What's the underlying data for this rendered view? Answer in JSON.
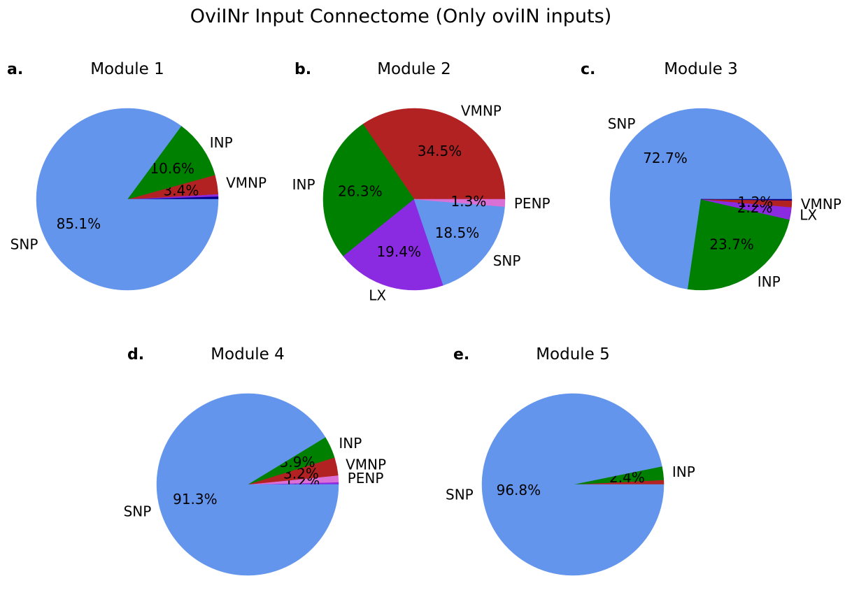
{
  "figure": {
    "title": "OviINr Input Connectome (Only oviIN inputs)"
  },
  "colors": {
    "SNP": "#6495ED",
    "INP": "#008000",
    "VMNP": "#B22222",
    "LX": "#8A2BE2",
    "PENP": "#DA70D6",
    "other": "#00008B"
  },
  "chart_data": [
    {
      "type": "pie",
      "panel": "a.",
      "title": "Module 1",
      "slices": [
        {
          "label": "",
          "value": 0.5,
          "pct": ""
        },
        {
          "label": "",
          "value": 0.4,
          "pct": ""
        },
        {
          "label": "VMNP",
          "value": 3.4,
          "pct": "3.4%"
        },
        {
          "label": "INP",
          "value": 10.6,
          "pct": "10.6%"
        },
        {
          "label": "SNP",
          "value": 85.1,
          "pct": "85.1%"
        }
      ],
      "colors": [
        "#00008B",
        "#8A2BE2",
        "#B22222",
        "#008000",
        "#6495ED"
      ]
    },
    {
      "type": "pie",
      "panel": "b.",
      "title": "Module 2",
      "slices": [
        {
          "label": "VMNP",
          "value": 34.5,
          "pct": "34.5%"
        },
        {
          "label": "INP",
          "value": 26.3,
          "pct": "26.3%"
        },
        {
          "label": "LX",
          "value": 19.4,
          "pct": "19.4%"
        },
        {
          "label": "SNP",
          "value": 18.5,
          "pct": "18.5%"
        },
        {
          "label": "PENP",
          "value": 1.3,
          "pct": "1.3%"
        }
      ],
      "colors": [
        "#B22222",
        "#008000",
        "#8A2BE2",
        "#6495ED",
        "#DA70D6"
      ]
    },
    {
      "type": "pie",
      "panel": "c.",
      "title": "Module 3",
      "slices": [
        {
          "label": "SNP",
          "value": 72.7,
          "pct": "72.7%"
        },
        {
          "label": "INP",
          "value": 23.7,
          "pct": "23.7%"
        },
        {
          "label": "LX",
          "value": 2.2,
          "pct": "2.2%"
        },
        {
          "label": "VMNP",
          "value": 1.2,
          "pct": "1.2%"
        },
        {
          "label": "",
          "value": 0.2,
          "pct": ""
        }
      ],
      "colors": [
        "#6495ED",
        "#008000",
        "#8A2BE2",
        "#B22222",
        "#00008B"
      ]
    },
    {
      "type": "pie",
      "panel": "d.",
      "title": "Module 4",
      "slices": [
        {
          "label": "",
          "value": 0.4,
          "pct": ""
        },
        {
          "label": "PENP",
          "value": 1.2,
          "pct": "1.2%"
        },
        {
          "label": "VMNP",
          "value": 3.2,
          "pct": "3.2%"
        },
        {
          "label": "INP",
          "value": 3.9,
          "pct": "3.9%"
        },
        {
          "label": "SNP",
          "value": 91.3,
          "pct": "91.3%"
        }
      ],
      "colors": [
        "#8A2BE2",
        "#DA70D6",
        "#B22222",
        "#008000",
        "#6495ED"
      ]
    },
    {
      "type": "pie",
      "panel": "e.",
      "title": "Module 5",
      "slices": [
        {
          "label": "",
          "value": 0.8,
          "pct": ""
        },
        {
          "label": "INP",
          "value": 2.4,
          "pct": "2.4%"
        },
        {
          "label": "SNP",
          "value": 96.8,
          "pct": "96.8%"
        }
      ],
      "colors": [
        "#B22222",
        "#008000",
        "#6495ED"
      ]
    }
  ]
}
